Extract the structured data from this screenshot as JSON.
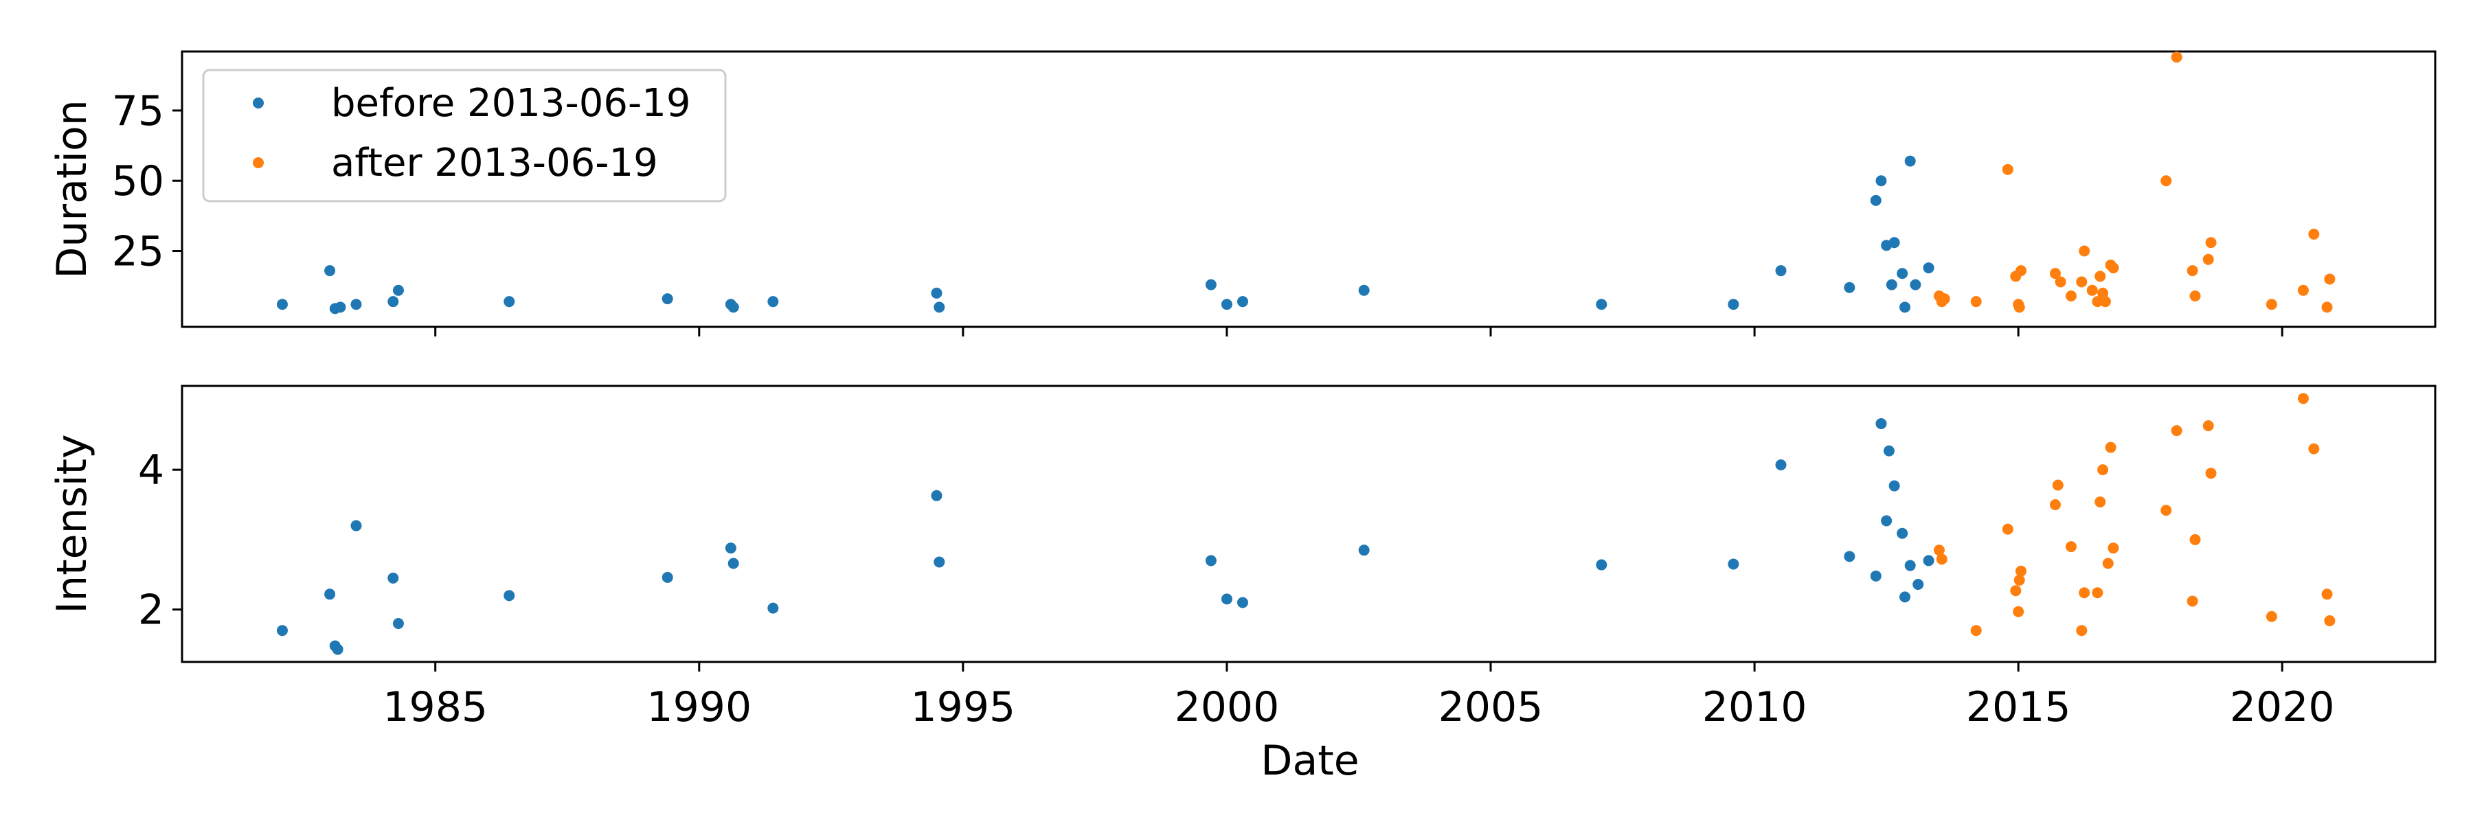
{
  "colors": {
    "before": "#1f77b4",
    "after": "#ff7f0e",
    "axis": "#000000",
    "legend_border": "#cccccc"
  },
  "chart_data": {
    "type": "scatter",
    "xlabel": "Date",
    "xlim": [
      1980.2,
      2022.9
    ],
    "xticks": [
      1985,
      1990,
      1995,
      2000,
      2005,
      2010,
      2015,
      2020
    ],
    "xtick_labels": [
      "1985",
      "1990",
      "1995",
      "2000",
      "2005",
      "2010",
      "2015",
      "2020"
    ],
    "legend": {
      "position": "upper-left",
      "entries": [
        "before 2013-06-19",
        "after 2013-06-19"
      ]
    },
    "panels": [
      {
        "id": "duration",
        "ylabel": "Duration",
        "ylim": [
          -2,
          96
        ],
        "yticks": [
          25,
          50,
          75
        ],
        "ytick_labels": [
          "25",
          "50",
          "75"
        ],
        "series": [
          {
            "name": "before 2013-06-19",
            "points": [
              [
                1982.1,
                6
              ],
              [
                1983.0,
                18
              ],
              [
                1983.1,
                4.5
              ],
              [
                1983.2,
                5
              ],
              [
                1983.5,
                6
              ],
              [
                1984.2,
                7
              ],
              [
                1984.3,
                11
              ],
              [
                1986.4,
                7
              ],
              [
                1989.4,
                8
              ],
              [
                1990.6,
                6
              ],
              [
                1990.65,
                5
              ],
              [
                1991.4,
                7
              ],
              [
                1994.5,
                10
              ],
              [
                1994.55,
                5
              ],
              [
                1999.7,
                13
              ],
              [
                2000.0,
                6
              ],
              [
                2000.3,
                7
              ],
              [
                2002.6,
                11
              ],
              [
                2007.1,
                6
              ],
              [
                2009.6,
                6
              ],
              [
                2010.5,
                18
              ],
              [
                2011.8,
                12
              ],
              [
                2012.3,
                43
              ],
              [
                2012.4,
                50
              ],
              [
                2012.5,
                27
              ],
              [
                2012.6,
                13
              ],
              [
                2012.65,
                28
              ],
              [
                2012.8,
                17
              ],
              [
                2012.85,
                5
              ],
              [
                2012.95,
                57
              ],
              [
                2013.05,
                13
              ],
              [
                2013.3,
                19
              ]
            ]
          },
          {
            "name": "after 2013-06-19",
            "points": [
              [
                2013.5,
                9
              ],
              [
                2013.55,
                7
              ],
              [
                2013.6,
                8
              ],
              [
                2014.2,
                7
              ],
              [
                2014.8,
                54
              ],
              [
                2014.95,
                16
              ],
              [
                2015.0,
                6
              ],
              [
                2015.02,
                5
              ],
              [
                2015.05,
                18
              ],
              [
                2015.7,
                17
              ],
              [
                2015.8,
                14
              ],
              [
                2016.0,
                9
              ],
              [
                2016.2,
                14
              ],
              [
                2016.25,
                25
              ],
              [
                2016.4,
                11
              ],
              [
                2016.5,
                7
              ],
              [
                2016.55,
                16
              ],
              [
                2016.6,
                10
              ],
              [
                2016.65,
                7
              ],
              [
                2016.75,
                20
              ],
              [
                2016.8,
                19
              ],
              [
                2017.8,
                50
              ],
              [
                2018.0,
                94
              ],
              [
                2018.3,
                18
              ],
              [
                2018.35,
                9
              ],
              [
                2018.6,
                22
              ],
              [
                2018.65,
                28
              ],
              [
                2019.8,
                6
              ],
              [
                2020.4,
                11
              ],
              [
                2020.6,
                31
              ],
              [
                2020.85,
                5
              ],
              [
                2020.9,
                15
              ]
            ]
          }
        ]
      },
      {
        "id": "intensity",
        "ylabel": "Intensity",
        "ylim": [
          1.25,
          5.2
        ],
        "yticks": [
          2,
          4
        ],
        "ytick_labels": [
          "2",
          "4"
        ],
        "series": [
          {
            "name": "before 2013-06-19",
            "points": [
              [
                1982.1,
                1.7
              ],
              [
                1983.0,
                2.22
              ],
              [
                1983.1,
                1.48
              ],
              [
                1983.15,
                1.43
              ],
              [
                1983.5,
                3.2
              ],
              [
                1984.2,
                2.45
              ],
              [
                1984.3,
                1.8
              ],
              [
                1986.4,
                2.2
              ],
              [
                1989.4,
                2.46
              ],
              [
                1990.6,
                2.88
              ],
              [
                1990.65,
                2.66
              ],
              [
                1991.4,
                2.02
              ],
              [
                1994.5,
                3.63
              ],
              [
                1994.55,
                2.68
              ],
              [
                1999.7,
                2.7
              ],
              [
                2000.0,
                2.15
              ],
              [
                2000.3,
                2.1
              ],
              [
                2002.6,
                2.85
              ],
              [
                2007.1,
                2.64
              ],
              [
                2009.6,
                2.65
              ],
              [
                2010.5,
                4.07
              ],
              [
                2011.8,
                2.76
              ],
              [
                2012.3,
                2.48
              ],
              [
                2012.4,
                4.66
              ],
              [
                2012.5,
                3.27
              ],
              [
                2012.55,
                4.27
              ],
              [
                2012.65,
                3.77
              ],
              [
                2012.8,
                3.09
              ],
              [
                2012.85,
                2.18
              ],
              [
                2012.95,
                2.63
              ],
              [
                2013.1,
                2.36
              ],
              [
                2013.3,
                2.7
              ]
            ]
          },
          {
            "name": "after 2013-06-19",
            "points": [
              [
                2013.5,
                2.85
              ],
              [
                2013.55,
                2.72
              ],
              [
                2014.2,
                1.7
              ],
              [
                2014.8,
                3.15
              ],
              [
                2014.95,
                2.27
              ],
              [
                2015.0,
                1.97
              ],
              [
                2015.02,
                2.42
              ],
              [
                2015.05,
                2.55
              ],
              [
                2015.7,
                3.5
              ],
              [
                2015.75,
                3.78
              ],
              [
                2016.0,
                2.9
              ],
              [
                2016.2,
                1.7
              ],
              [
                2016.25,
                2.24
              ],
              [
                2016.5,
                2.24
              ],
              [
                2016.55,
                3.54
              ],
              [
                2016.6,
                4.0
              ],
              [
                2016.7,
                2.66
              ],
              [
                2016.75,
                4.32
              ],
              [
                2016.8,
                2.88
              ],
              [
                2017.8,
                3.42
              ],
              [
                2018.0,
                4.56
              ],
              [
                2018.3,
                2.12
              ],
              [
                2018.35,
                3.0
              ],
              [
                2018.6,
                4.63
              ],
              [
                2018.65,
                3.95
              ],
              [
                2019.8,
                1.9
              ],
              [
                2020.4,
                5.02
              ],
              [
                2020.6,
                4.3
              ],
              [
                2020.85,
                2.22
              ],
              [
                2020.9,
                1.84
              ]
            ]
          }
        ]
      }
    ]
  }
}
